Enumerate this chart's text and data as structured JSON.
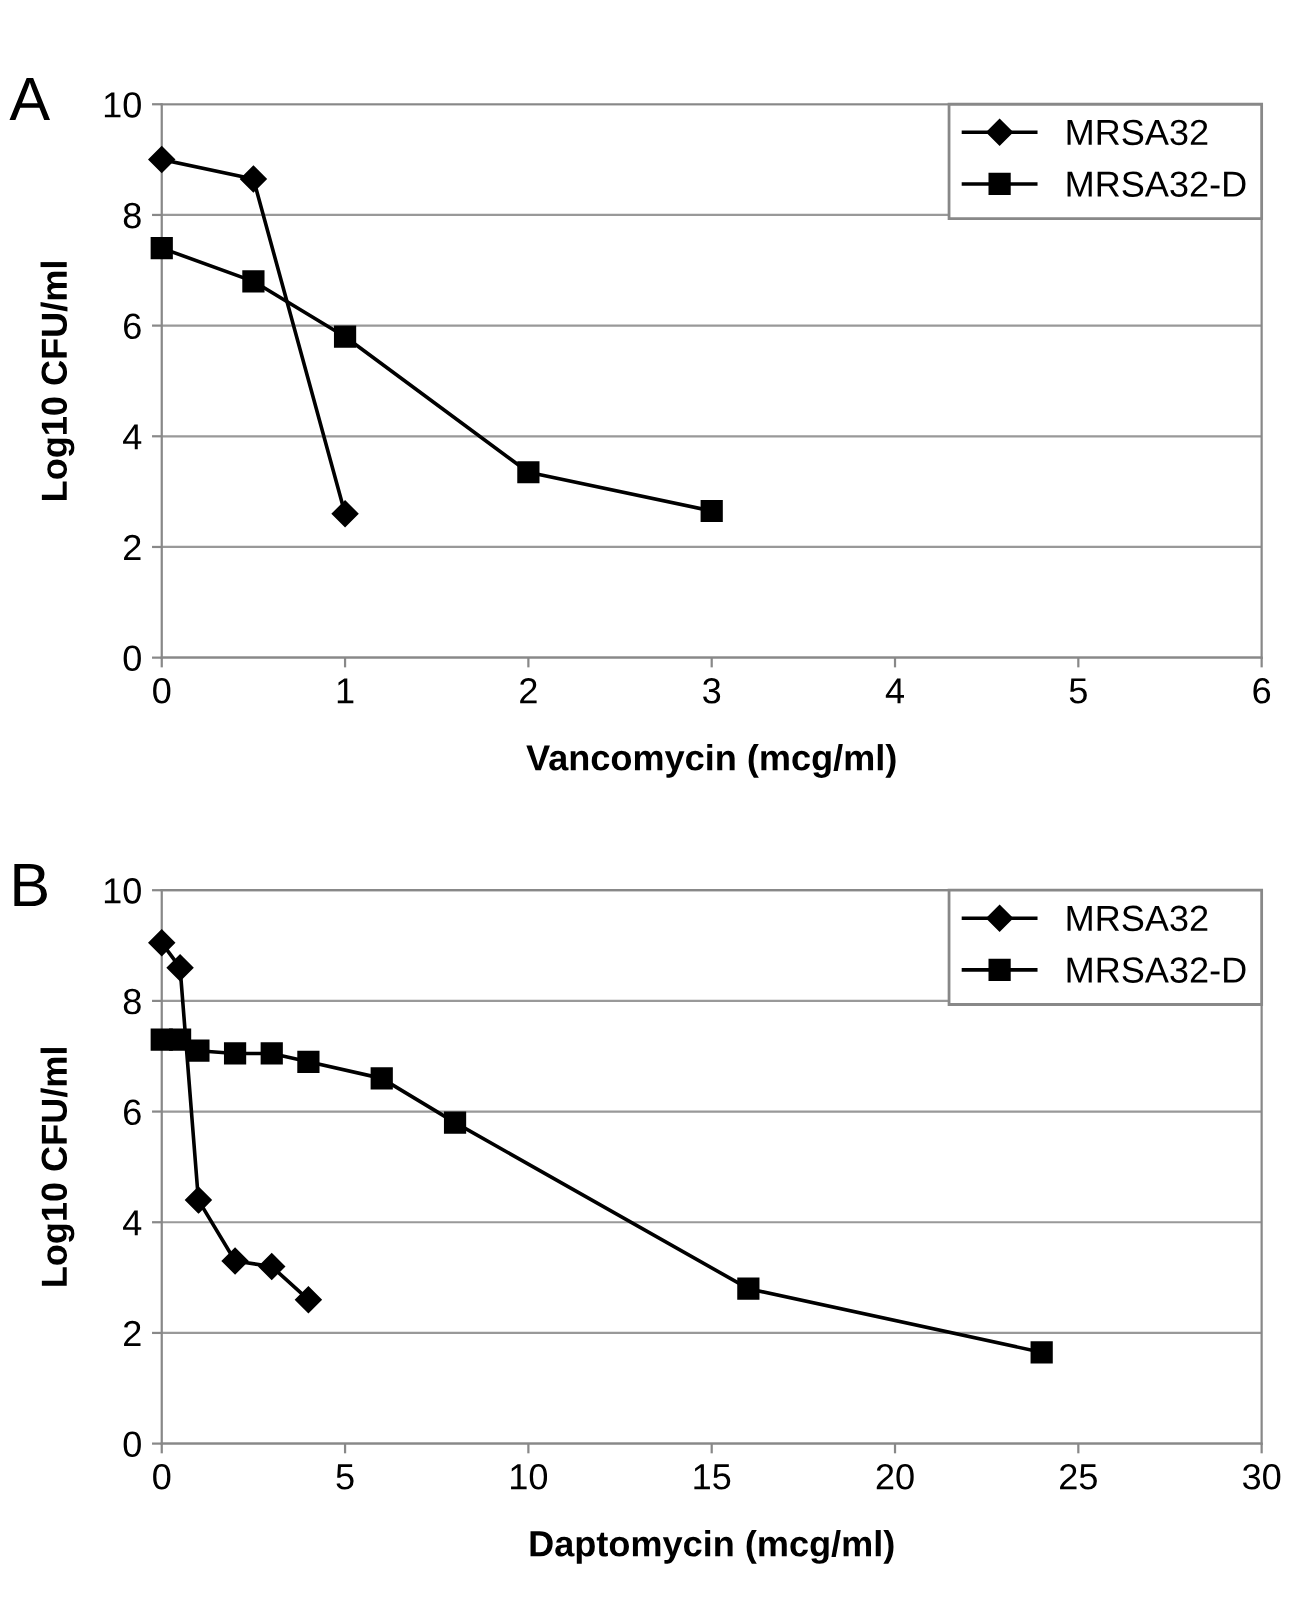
{
  "chart_data": [
    {
      "type": "line",
      "annotations": [
        "A"
      ],
      "xlabel": "Vancomycin (mcg/ml)",
      "ylabel": "Log10 CFU/ml",
      "xlim": [
        0,
        6
      ],
      "xticks": [
        0,
        1,
        2,
        3,
        4,
        5,
        6
      ],
      "ylim": [
        0,
        10
      ],
      "yticks": [
        0,
        2,
        4,
        6,
        8,
        10
      ],
      "grid": "y",
      "legend": "top right",
      "series": [
        {
          "name": "MRSA32",
          "color": "#000000",
          "marker": "diamond",
          "x": [
            0,
            0.5,
            1
          ],
          "values": [
            9.0,
            8.65,
            2.6
          ]
        },
        {
          "name": "MRSA32-D",
          "color": "#000000",
          "marker": "square",
          "x": [
            0,
            0.5,
            1,
            2,
            3
          ],
          "values": [
            7.4,
            6.8,
            5.8,
            3.35,
            2.65
          ]
        }
      ]
    },
    {
      "type": "line",
      "annotations": [
        "B"
      ],
      "xlabel": "Daptomycin (mcg/ml)",
      "ylabel": "Log10 CFU/ml",
      "xlim": [
        0,
        30
      ],
      "xticks": [
        0,
        5,
        10,
        15,
        20,
        25,
        30
      ],
      "ylim": [
        0,
        10
      ],
      "yticks": [
        0,
        2,
        4,
        6,
        8,
        10
      ],
      "grid": "y",
      "legend": "top right",
      "series": [
        {
          "name": "MRSA32",
          "color": "#000000",
          "marker": "diamond",
          "x": [
            0,
            0.5,
            1,
            2,
            3,
            4
          ],
          "values": [
            9.05,
            8.6,
            4.4,
            3.3,
            3.2,
            2.6
          ]
        },
        {
          "name": "MRSA32-D",
          "color": "#000000",
          "marker": "square",
          "x": [
            0,
            0.5,
            1,
            2,
            3,
            4,
            6,
            8,
            16,
            24
          ],
          "values": [
            7.3,
            7.3,
            7.1,
            7.05,
            7.05,
            6.9,
            6.6,
            5.8,
            2.8,
            1.65
          ]
        }
      ]
    }
  ]
}
